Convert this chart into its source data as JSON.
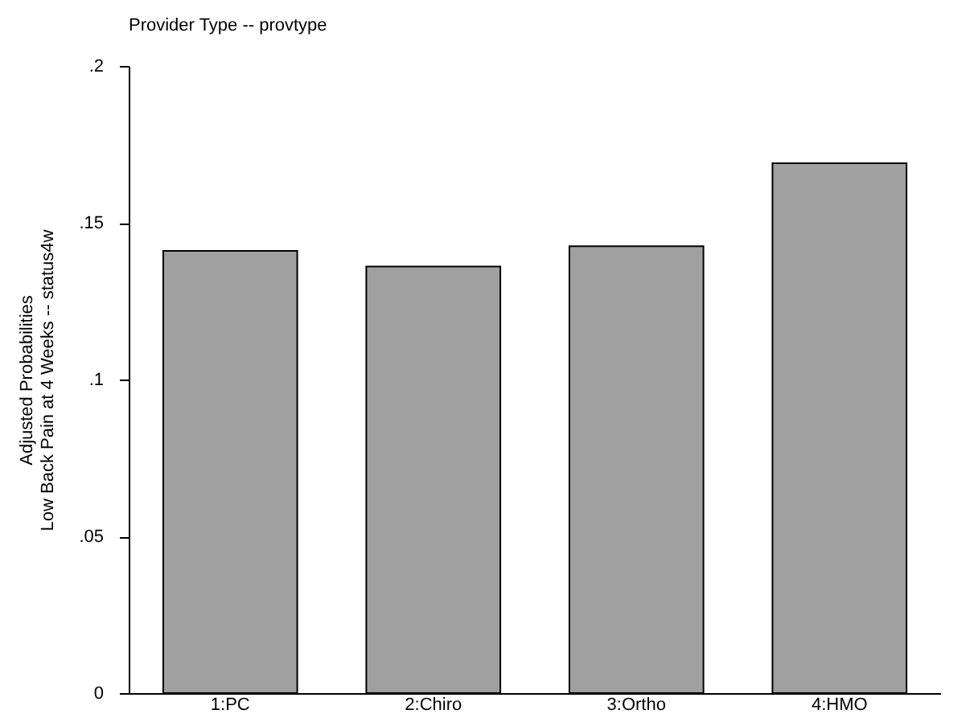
{
  "chart_data": {
    "type": "bar",
    "title": "Provider Type -- provtype",
    "ylabel": "Adjusted Probabilities\nLow Back Pain at 4 Weeks -- status4w",
    "categories": [
      "1:PC",
      "2:Chiro",
      "3:Ortho",
      "4:HMO"
    ],
    "values": [
      0.141,
      0.136,
      0.1425,
      0.169
    ],
    "color": "#a0a0a0",
    "ylim": [
      0,
      0.2
    ],
    "yticks": [
      {
        "value": 0,
        "label": "0"
      },
      {
        "value": 0.05,
        "label": ".05"
      },
      {
        "value": 0.1,
        "label": ".1"
      },
      {
        "value": 0.15,
        "label": ".15"
      },
      {
        "value": 0.2,
        "label": ".2"
      }
    ],
    "grid": false
  }
}
